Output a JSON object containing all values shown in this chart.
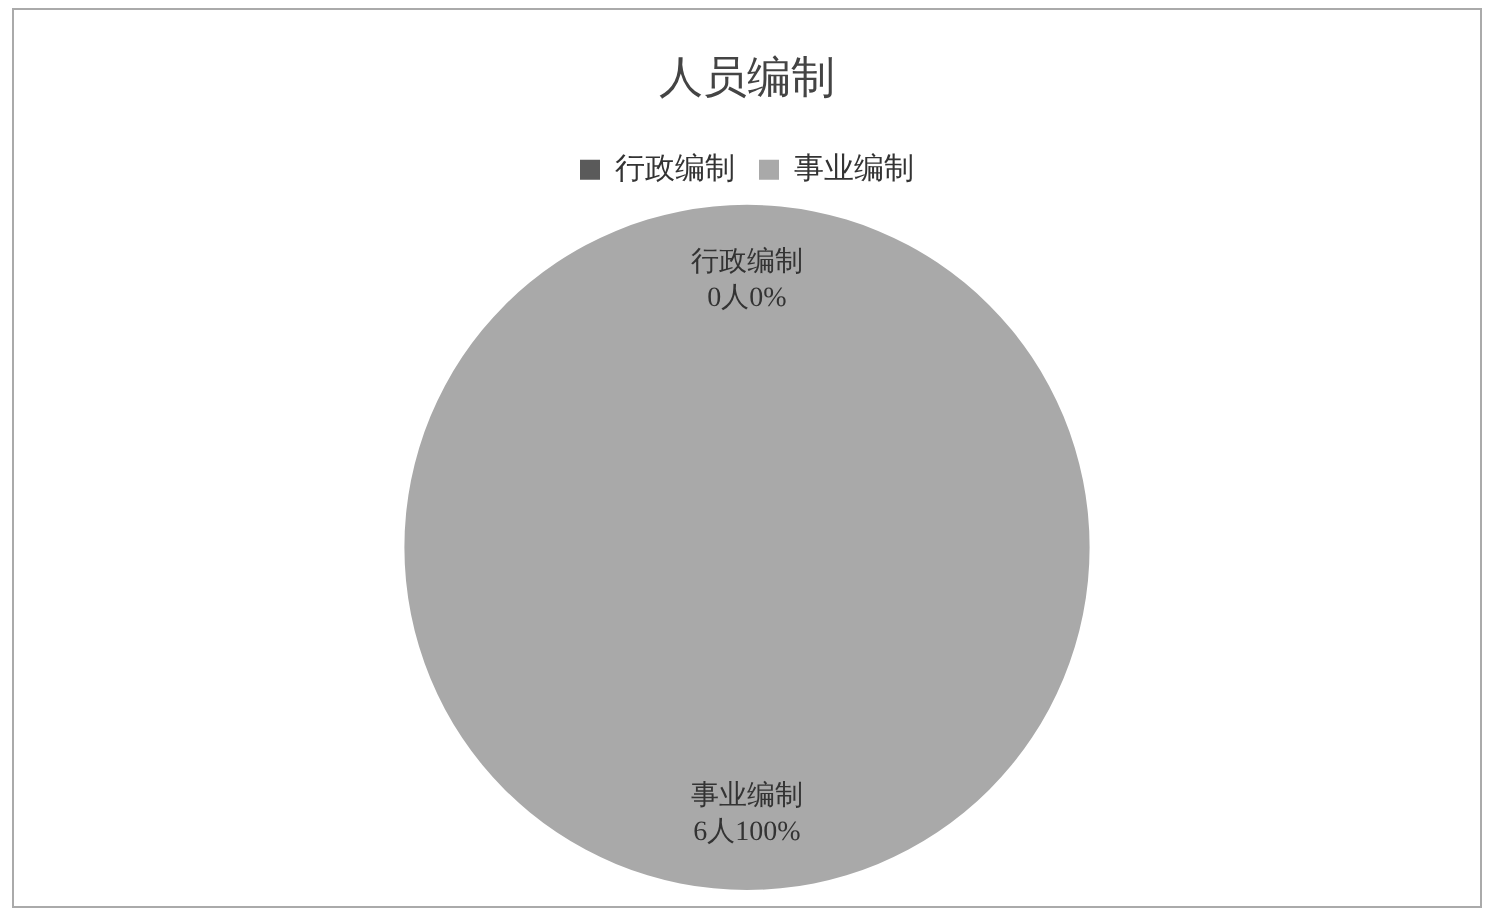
{
  "chart_data": {
    "type": "pie",
    "title": "人员编制",
    "categories": [
      "行政编制",
      "事业编制"
    ],
    "values": [
      0,
      6
    ],
    "colors": [
      "#5a5a5a",
      "#a9a9a9"
    ],
    "value_labels": [
      "0人0%",
      "6人100%"
    ],
    "legend": "top"
  }
}
